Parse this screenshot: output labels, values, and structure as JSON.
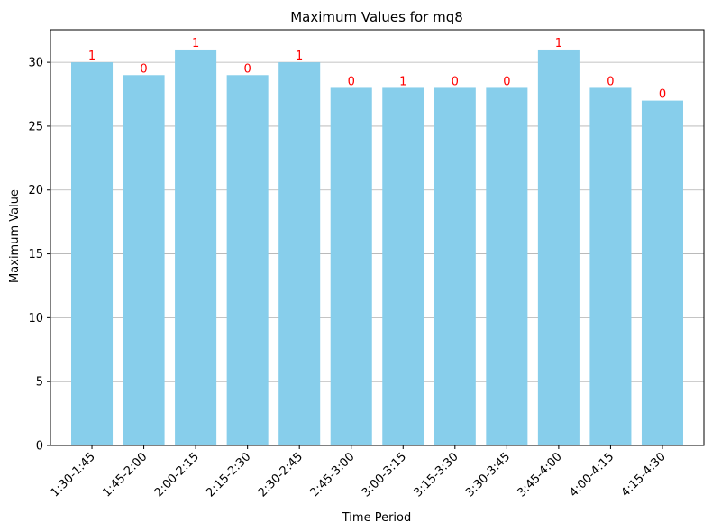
{
  "chart_data": {
    "type": "bar",
    "title": "Maximum Values for mq8",
    "xlabel": "Time Period",
    "ylabel": "Maximum Value",
    "categories": [
      "1:30-1:45",
      "1:45-2:00",
      "2:00-2:15",
      "2:15-2:30",
      "2:30-2:45",
      "2:45-3:00",
      "3:00-3:15",
      "3:15-3:30",
      "3:30-3:45",
      "3:45-4:00",
      "4:00-4:15",
      "4:15-4:30"
    ],
    "values": [
      30,
      29,
      31,
      29,
      30,
      28,
      28,
      28,
      28,
      31,
      28,
      27
    ],
    "bar_labels": [
      "1",
      "0",
      "1",
      "0",
      "1",
      "0",
      "1",
      "0",
      "0",
      "1",
      "0",
      "0"
    ],
    "ylim": [
      0,
      32.55
    ],
    "yticks": [
      0,
      5,
      10,
      15,
      20,
      25,
      30
    ],
    "grid": "y-major",
    "colors": {
      "bar": "#87ceeb",
      "bar_label": "#ff0000",
      "grid": "#b0b0b0",
      "axis": "#000000"
    }
  }
}
